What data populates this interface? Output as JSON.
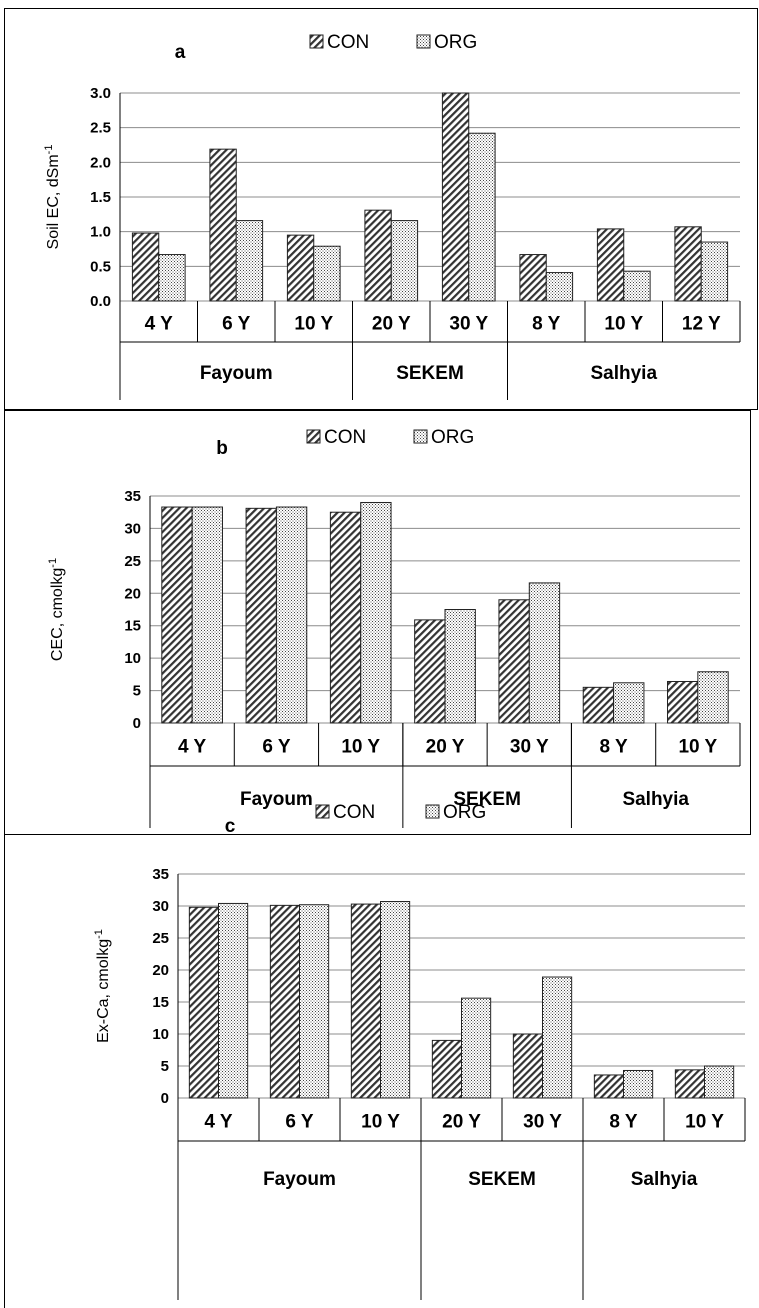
{
  "chart_data": [
    {
      "type": "bar",
      "panel_label": "a",
      "ylabel": "Soil EC, dSm",
      "ylabel_sup": "-1",
      "ylim": [
        0,
        3.0
      ],
      "yticks": [
        "0.0",
        "0.5",
        "1.0",
        "1.5",
        "2.0",
        "2.5",
        "3.0"
      ],
      "grid": true,
      "legend": "top-center",
      "categories": [
        "4 Y",
        "6 Y",
        "10 Y",
        "20 Y",
        "30 Y",
        "8 Y",
        "10 Y",
        "12 Y"
      ],
      "groups": [
        {
          "label": "Fayoum",
          "count": 3
        },
        {
          "label": "SEKEM",
          "count": 2
        },
        {
          "label": "Salhyia",
          "count": 3
        }
      ],
      "series": [
        {
          "name": "CON",
          "values": [
            0.98,
            2.19,
            0.95,
            1.31,
            3.0,
            0.67,
            1.04,
            1.07
          ]
        },
        {
          "name": "ORG",
          "values": [
            0.67,
            1.16,
            0.79,
            1.16,
            2.42,
            0.41,
            0.43,
            0.85
          ]
        }
      ]
    },
    {
      "type": "bar",
      "panel_label": "b",
      "ylabel": "CEC, cmolkg",
      "ylabel_sup": "-1",
      "ylim": [
        0,
        35
      ],
      "yticks": [
        "0",
        "5",
        "10",
        "15",
        "20",
        "25",
        "30",
        "35"
      ],
      "grid": true,
      "legend": "top-center",
      "categories": [
        "4 Y",
        "6 Y",
        "10 Y",
        "20 Y",
        "30 Y",
        "8 Y",
        "10 Y"
      ],
      "groups": [
        {
          "label": "Fayoum",
          "count": 3
        },
        {
          "label": "SEKEM",
          "count": 2
        },
        {
          "label": "Salhyia",
          "count": 2
        }
      ],
      "series": [
        {
          "name": "CON",
          "values": [
            33.3,
            33.1,
            32.5,
            15.9,
            19.0,
            5.5,
            6.4
          ]
        },
        {
          "name": "ORG",
          "values": [
            33.3,
            33.3,
            34.0,
            17.5,
            21.6,
            6.2,
            7.9
          ]
        }
      ]
    },
    {
      "type": "bar",
      "panel_label": "c",
      "ylabel": "Ex-Ca, cmolkg",
      "ylabel_sup": "-1",
      "ylim": [
        0,
        35
      ],
      "yticks": [
        "0",
        "5",
        "10",
        "15",
        "20",
        "25",
        "30",
        "35"
      ],
      "grid": true,
      "legend": "top-center",
      "categories": [
        "4 Y",
        "6 Y",
        "10 Y",
        "20 Y",
        "30 Y",
        "8 Y",
        "10 Y"
      ],
      "groups": [
        {
          "label": "Fayoum",
          "count": 3
        },
        {
          "label": "SEKEM",
          "count": 2
        },
        {
          "label": "Salhyia",
          "count": 2
        }
      ],
      "series": [
        {
          "name": "CON",
          "values": [
            29.8,
            30.1,
            30.3,
            9.0,
            10.0,
            3.6,
            4.4
          ]
        },
        {
          "name": "ORG",
          "values": [
            30.4,
            30.2,
            30.7,
            15.6,
            18.9,
            4.3,
            5.0
          ]
        }
      ]
    }
  ]
}
